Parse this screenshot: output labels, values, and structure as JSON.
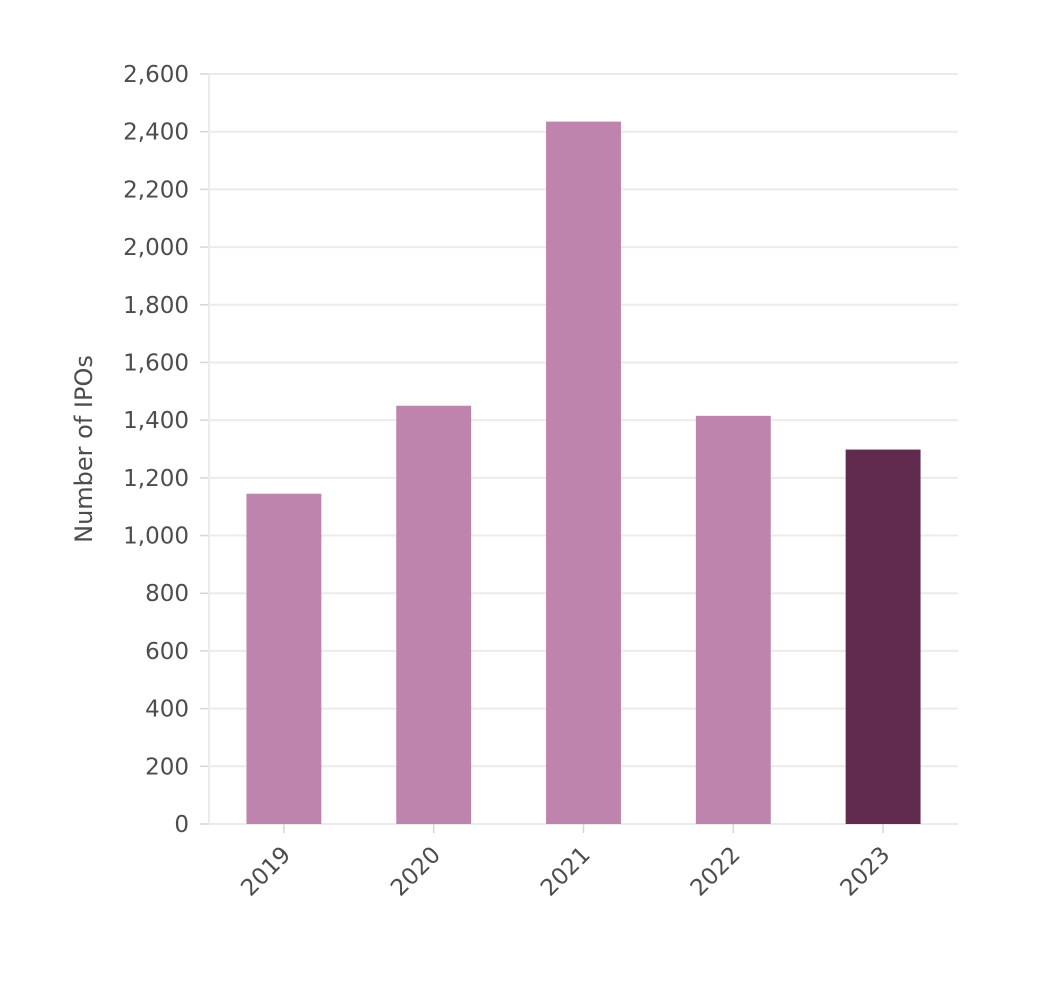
{
  "chart_data": {
    "type": "bar",
    "title": "",
    "xlabel": "",
    "ylabel": "Number of IPOs",
    "categories": [
      "2019",
      "2020",
      "2021",
      "2022",
      "2023"
    ],
    "values": [
      1145,
      1450,
      2435,
      1415,
      1298
    ],
    "ylim": [
      0,
      2600
    ],
    "yticks": [
      0,
      200,
      400,
      600,
      800,
      1000,
      1200,
      1400,
      1600,
      1800,
      2000,
      2200,
      2400,
      2600
    ],
    "ytick_labels": [
      "0",
      "200",
      "400",
      "600",
      "800",
      "1,000",
      "1,200",
      "1,400",
      "1,600",
      "1,800",
      "2,000",
      "2,200",
      "2,400",
      "2,600"
    ],
    "grid": true,
    "legend": "none",
    "colors": {
      "default_bar": "#bf84ae",
      "highlight_bar": "#612a4f",
      "highlight_category": "2023"
    }
  }
}
